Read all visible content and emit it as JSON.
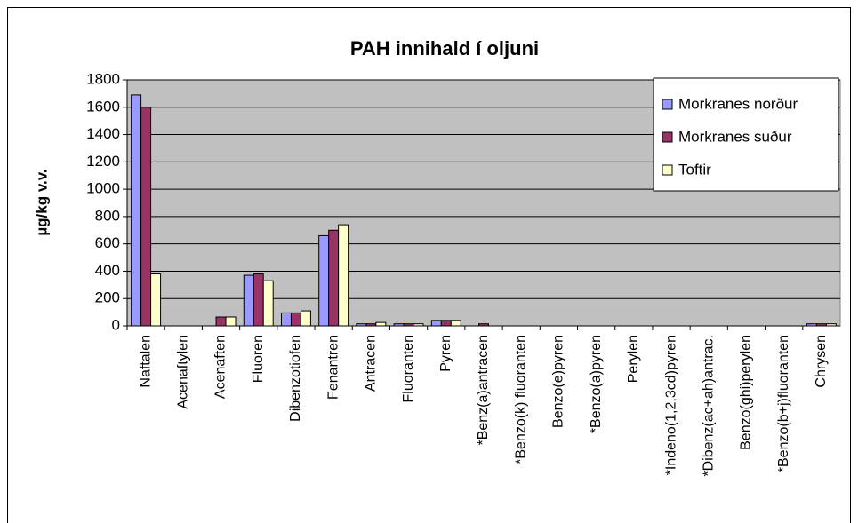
{
  "chart_data": {
    "type": "bar",
    "title": "PAH innihald í oljuni",
    "y_label": "µg/kg v.v.",
    "categories": [
      "Naftalen",
      "Acenaftylen",
      "Acenaften",
      "Fluoren",
      "Dibenzotiofen",
      "Fenantren",
      "Antracen",
      "Fluoranten",
      "Pyren",
      "*Benz(a)antracen",
      "*Benzo(k) fluoranten",
      "Benzo(e)pyren",
      "*Benzo(a)pyren",
      "Perylen",
      "*Indeno(1,2,3cd)pyren",
      "*Dibenz(ac+ah)antrac.",
      "Benzo(ghi)perylen",
      "*Benzo(b+j)fluoranten",
      "Chrysen"
    ],
    "series": [
      {
        "name": "Morkranes norður",
        "color": "#9999ff",
        "values": [
          1690,
          0,
          0,
          370,
          95,
          660,
          15,
          15,
          40,
          0,
          0,
          0,
          0,
          0,
          0,
          0,
          0,
          0,
          15
        ]
      },
      {
        "name": "Morkranes suður",
        "color": "#993366",
        "values": [
          1600,
          0,
          65,
          380,
          95,
          700,
          15,
          15,
          40,
          15,
          0,
          0,
          0,
          0,
          0,
          0,
          0,
          0,
          15
        ]
      },
      {
        "name": "Toftir",
        "color": "#ffffcc",
        "values": [
          380,
          0,
          65,
          330,
          110,
          740,
          25,
          15,
          40,
          0,
          0,
          0,
          0,
          0,
          0,
          0,
          0,
          0,
          15
        ]
      }
    ],
    "ylim": [
      0,
      1800
    ],
    "yticks": [
      0,
      200,
      400,
      600,
      800,
      1000,
      1200,
      1400,
      1600,
      1800
    ],
    "grid": true,
    "legend": "upper right",
    "plot_background": "#c0c0c0"
  }
}
